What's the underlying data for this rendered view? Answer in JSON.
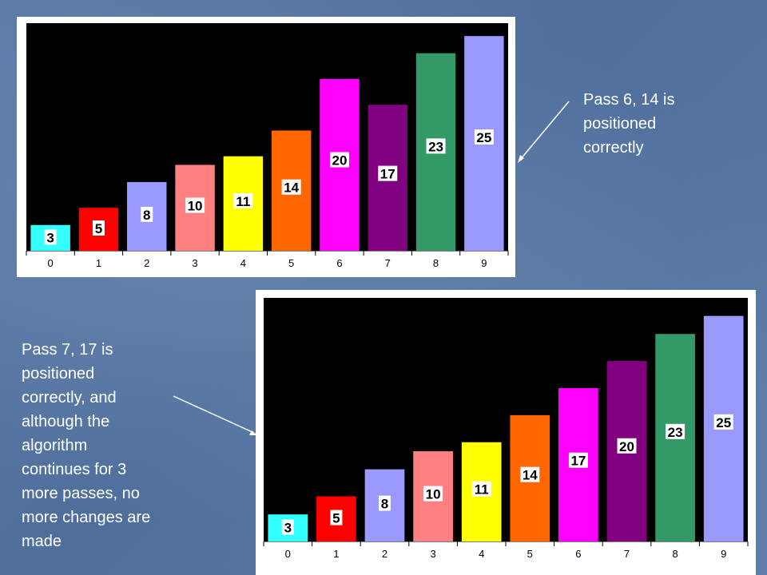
{
  "captions": {
    "pass6_line1": "Pass 6, 14 is",
    "pass6_line2": "positioned",
    "pass6_line3": "correctly",
    "pass7_line1": "Pass 7, 17 is",
    "pass7_line2": "positioned",
    "pass7_line3": "correctly, and",
    "pass7_line4": "although the",
    "pass7_line5": "algorithm",
    "pass7_line6": "continues for 3",
    "pass7_line7": "more passes, no",
    "pass7_line8": "more changes are",
    "pass7_line9": "made"
  },
  "colors": {
    "plot_background": "#000000",
    "bar_colors": [
      "#33ffff",
      "#ff0000",
      "#9999ff",
      "#ff8080",
      "#ffff00",
      "#ff6600",
      "#ff00ff",
      "#800080",
      "#339966",
      "#9999ff"
    ]
  },
  "chart_data": [
    {
      "type": "bar",
      "categories": [
        "0",
        "1",
        "2",
        "3",
        "4",
        "5",
        "6",
        "7",
        "8",
        "9"
      ],
      "values": [
        3,
        5,
        8,
        10,
        11,
        14,
        20,
        17,
        23,
        25
      ],
      "data_labels": [
        "3",
        "5",
        "8",
        "10",
        "11",
        "14",
        "20",
        "17",
        "23",
        "25"
      ],
      "ylim": [
        0,
        26.5
      ],
      "grid": false,
      "legend": false
    },
    {
      "type": "bar",
      "categories": [
        "0",
        "1",
        "2",
        "3",
        "4",
        "5",
        "6",
        "7",
        "8",
        "9"
      ],
      "values": [
        3,
        5,
        8,
        10,
        11,
        14,
        17,
        20,
        23,
        25
      ],
      "data_labels": [
        "3",
        "5",
        "8",
        "10",
        "11",
        "14",
        "17",
        "20",
        "23",
        "25"
      ],
      "ylim": [
        0,
        27
      ],
      "grid": false,
      "legend": false
    }
  ]
}
